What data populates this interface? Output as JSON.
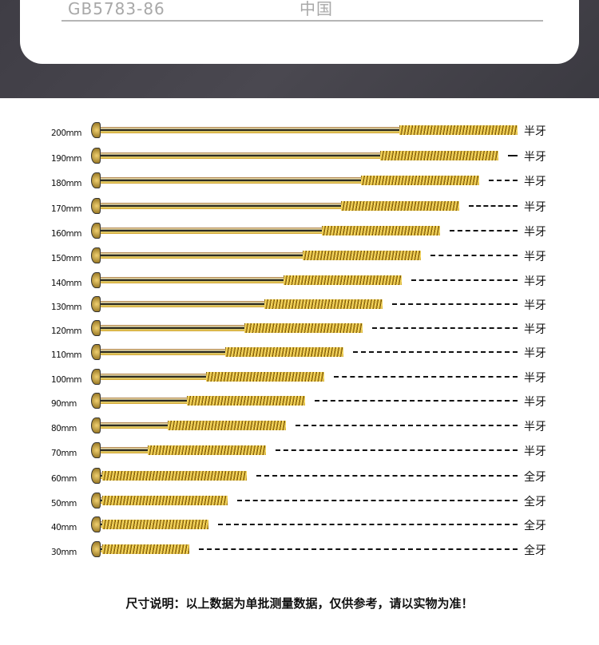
{
  "card": {
    "standard": "GB5783-86",
    "origin": "中国"
  },
  "screws": [
    {
      "length": "200mm",
      "mm": 200,
      "type": "半牙",
      "full": false
    },
    {
      "length": "190mm",
      "mm": 190,
      "type": "半牙",
      "full": false
    },
    {
      "length": "180mm",
      "mm": 180,
      "type": "半牙",
      "full": false
    },
    {
      "length": "170mm",
      "mm": 170,
      "type": "半牙",
      "full": false
    },
    {
      "length": "160mm",
      "mm": 160,
      "type": "半牙",
      "full": false
    },
    {
      "length": "150mm",
      "mm": 150,
      "type": "半牙",
      "full": false
    },
    {
      "length": "140mm",
      "mm": 140,
      "type": "半牙",
      "full": false
    },
    {
      "length": "130mm",
      "mm": 130,
      "type": "半牙",
      "full": false
    },
    {
      "length": "120mm",
      "mm": 120,
      "type": "半牙",
      "full": false
    },
    {
      "length": "110mm",
      "mm": 110,
      "type": "半牙",
      "full": false
    },
    {
      "length": "100mm",
      "mm": 100,
      "type": "半牙",
      "full": false
    },
    {
      "length": "90mm",
      "mm": 90,
      "type": "半牙",
      "full": false
    },
    {
      "length": "80mm",
      "mm": 80,
      "type": "半牙",
      "full": false
    },
    {
      "length": "70mm",
      "mm": 70,
      "type": "半牙",
      "full": false
    },
    {
      "length": "60mm",
      "mm": 60,
      "type": "全牙",
      "full": true
    },
    {
      "length": "50mm",
      "mm": 50,
      "type": "全牙",
      "full": true
    },
    {
      "length": "40mm",
      "mm": 40,
      "type": "全牙",
      "full": true
    },
    {
      "length": "30mm",
      "mm": 30,
      "type": "全牙",
      "full": true
    }
  ],
  "footer": {
    "note": "尺寸说明：以上数据为单批测量数据，仅供参考，请以实物为准！"
  }
}
